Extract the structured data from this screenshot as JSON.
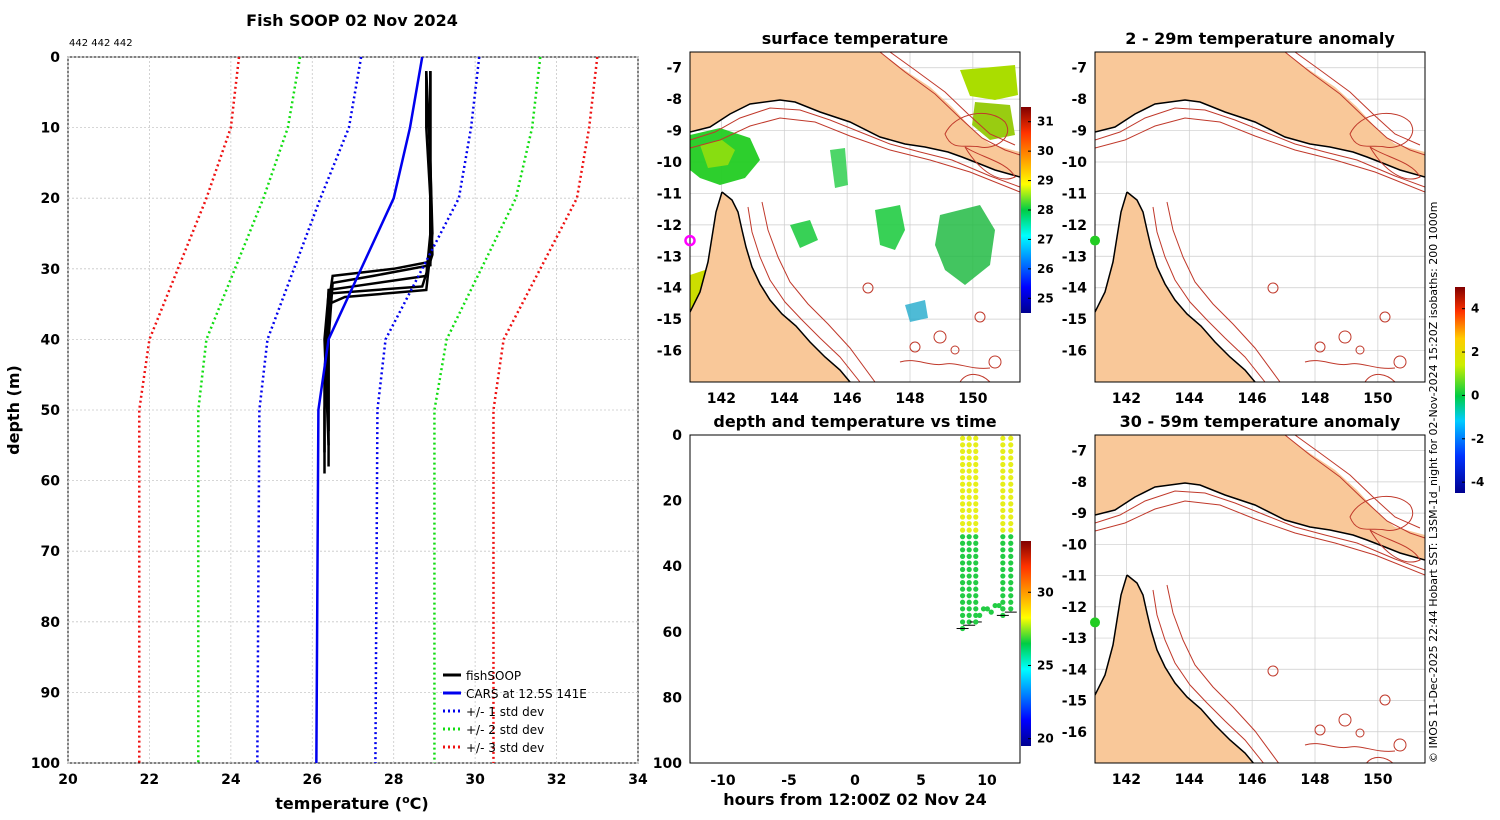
{
  "chart_data": [
    {
      "panel": "profile",
      "type": "line",
      "title": "Fish SOOP 02 Nov 2024",
      "header_note": "442 442 442",
      "xlabel": "temperature (",
      "xlabel_sup": "o",
      "xlabel_end": "C)",
      "ylabel": "depth (m)",
      "xlim": [
        20,
        34
      ],
      "ylim": [
        0,
        100
      ],
      "yreversed": true,
      "xticks": [
        "20",
        "22",
        "24",
        "26",
        "28",
        "30",
        "32",
        "34"
      ],
      "yticks": [
        "0",
        "10",
        "20",
        "30",
        "40",
        "50",
        "60",
        "70",
        "80",
        "90",
        "100"
      ],
      "legend": [
        "fishSOOP",
        "CARS at 12.5S 141E",
        "+/- 1 std dev",
        "+/- 2 std dev",
        "+/- 3 std dev"
      ],
      "legend_position": "bottom-right",
      "series": [
        {
          "name": "fishSOOP",
          "color": "#000000",
          "style": "solid",
          "profiles": [
            {
              "temp": [
                28.9,
                28.9,
                28.9,
                28.9,
                28.0,
                26.5,
                26.4,
                26.4,
                26.4,
                26.4
              ],
              "depth": [
                2,
                10,
                20,
                29,
                30,
                31,
                35,
                45,
                55,
                58
              ]
            },
            {
              "temp": [
                28.8,
                28.8,
                28.9,
                28.9,
                27.5,
                26.5,
                26.4,
                26.3,
                26.3
              ],
              "depth": [
                2,
                10,
                20,
                29.5,
                31,
                32,
                40,
                50,
                59
              ]
            },
            {
              "temp": [
                28.8,
                28.9,
                28.9,
                28.8,
                27.0,
                26.4,
                26.3,
                26.3
              ],
              "depth": [
                2,
                15,
                25,
                31,
                32.5,
                33,
                45,
                56
              ]
            },
            {
              "temp": [
                28.9,
                28.9,
                28.95,
                28.8,
                26.8,
                26.4,
                26.4
              ],
              "depth": [
                2,
                15,
                25,
                33,
                34,
                35,
                53
              ]
            },
            {
              "temp": [
                28.9,
                28.9,
                28.95,
                28.7,
                26.4,
                26.3,
                26.4
              ],
              "depth": [
                2,
                15,
                28,
                32.5,
                33.5,
                40,
                55
              ]
            }
          ]
        },
        {
          "name": "CARS",
          "color": "#0000ee",
          "style": "solid",
          "temp": [
            28.7,
            28.4,
            28.0,
            26.4,
            26.15,
            26.1
          ],
          "depth": [
            0,
            10,
            20,
            40,
            50,
            100
          ]
        },
        {
          "name": "-1 std",
          "color": "#0000ee",
          "style": "dotted",
          "temp": [
            27.2,
            26.9,
            26.2,
            24.9,
            24.7,
            24.65
          ],
          "depth": [
            0,
            10,
            20,
            40,
            50,
            100
          ]
        },
        {
          "name": "+1 std",
          "color": "#0000ee",
          "style": "dotted",
          "temp": [
            30.1,
            29.9,
            29.6,
            27.8,
            27.6,
            27.55
          ],
          "depth": [
            0,
            10,
            20,
            40,
            50,
            100
          ]
        },
        {
          "name": "-2 std",
          "color": "#11dd11",
          "style": "dotted",
          "temp": [
            25.7,
            25.4,
            24.8,
            23.4,
            23.2,
            23.2
          ],
          "depth": [
            0,
            10,
            20,
            40,
            50,
            100
          ]
        },
        {
          "name": "+2 std",
          "color": "#11dd11",
          "style": "dotted",
          "temp": [
            31.6,
            31.4,
            31.0,
            29.3,
            29.0,
            29.0
          ],
          "depth": [
            0,
            10,
            20,
            40,
            50,
            100
          ]
        },
        {
          "name": "-3 std",
          "color": "#ee1111",
          "style": "dotted",
          "temp": [
            24.2,
            24.0,
            23.4,
            22.0,
            21.75,
            21.75
          ],
          "depth": [
            0,
            10,
            20,
            40,
            50,
            100
          ]
        },
        {
          "name": "+3 std",
          "color": "#ee1111",
          "style": "dotted",
          "temp": [
            33.0,
            32.8,
            32.5,
            30.7,
            30.45,
            30.45
          ],
          "depth": [
            0,
            10,
            20,
            40,
            50,
            100
          ]
        }
      ]
    },
    {
      "panel": "surface",
      "type": "heatmap",
      "title": "surface temperature",
      "xlim": [
        141,
        151.5
      ],
      "ylim": [
        -17,
        -6.5
      ],
      "xticks": [
        "142",
        "144",
        "146",
        "148",
        "150"
      ],
      "yticks": [
        "-7",
        "-8",
        "-9",
        "-10",
        "-11",
        "-12",
        "-13",
        "-14",
        "-15",
        "-16"
      ],
      "colorbar": {
        "min": 24.5,
        "max": 31.5,
        "ticks": [
          "25",
          "26",
          "27",
          "28",
          "29",
          "30",
          "31"
        ]
      },
      "marker": {
        "lon": 141.0,
        "lat": -12.5
      }
    },
    {
      "panel": "anomaly_shallow",
      "type": "heatmap",
      "title": "2 - 29m temperature anomaly",
      "xlim": [
        141,
        151.5
      ],
      "ylim": [
        -17,
        -6.5
      ],
      "xticks": [
        "142",
        "144",
        "146",
        "148",
        "150"
      ],
      "yticks": [
        "-7",
        "-8",
        "-9",
        "-10",
        "-11",
        "-12",
        "-13",
        "-14",
        "-15",
        "-16"
      ],
      "marker": {
        "lon": 141.0,
        "lat": -12.5
      }
    },
    {
      "panel": "anomaly_deep",
      "type": "heatmap",
      "title": "30 - 59m temperature anomaly",
      "xlim": [
        141,
        151.5
      ],
      "ylim": [
        -17,
        -6.5
      ],
      "xticks": [
        "142",
        "144",
        "146",
        "148",
        "150"
      ],
      "yticks": [
        "-7",
        "-8",
        "-9",
        "-10",
        "-11",
        "-12",
        "-13",
        "-14",
        "-15",
        "-16"
      ],
      "colorbar": {
        "min": -4.5,
        "max": 5,
        "ticks": [
          "4",
          "2",
          "0",
          "-2",
          "-4"
        ]
      },
      "marker": {
        "lon": 141.0,
        "lat": -12.5
      }
    },
    {
      "panel": "time",
      "type": "scatter",
      "title": "depth and temperature vs time",
      "xlabel": "hours from 12:00Z 02 Nov 24",
      "xlim": [
        -12.5,
        12.5
      ],
      "ylim": [
        0,
        100
      ],
      "yreversed": true,
      "xticks": [
        "-10",
        "-5",
        "0",
        "5",
        "10"
      ],
      "yticks": [
        "0",
        "20",
        "40",
        "60",
        "80",
        "100"
      ],
      "colorbar": {
        "min": 19.5,
        "max": 33.5,
        "ticks": [
          "20",
          "25",
          "30"
        ]
      },
      "casts": [
        {
          "hour": 8.15,
          "max_depth": 59
        },
        {
          "hour": 8.65,
          "max_depth": 58
        },
        {
          "hour": 9.15,
          "max_depth": 57
        },
        {
          "hour": 11.2,
          "max_depth": 55
        },
        {
          "hour": 11.8,
          "max_depth": 54
        }
      ],
      "bottom_segments": [
        {
          "from_hour": 9.15,
          "to_hour": 11.2,
          "depths": [
            57,
            55,
            53,
            53,
            54,
            52,
            52,
            53
          ]
        }
      ],
      "thermocline_depth": 31,
      "upper_temp": 28.9,
      "lower_temp": 26.4
    }
  ],
  "side_text": "© IMOS 11-Dec-2025 22:44 Hobart SST: L3SM-1d_night for 02-Nov-2024 15:20Z isobaths: 200  1000m"
}
